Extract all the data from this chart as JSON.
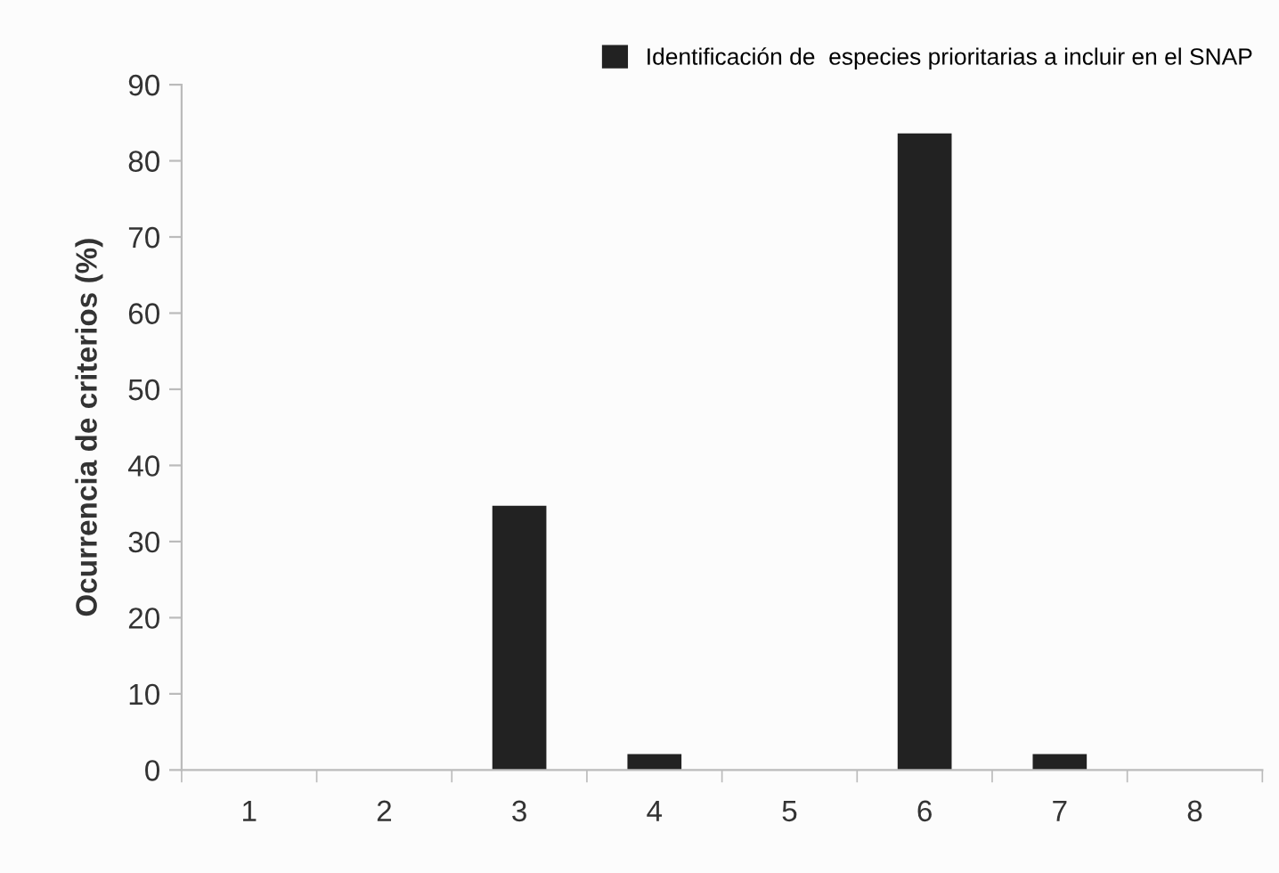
{
  "chart_data": {
    "type": "bar",
    "ylabel": "Ocurrencia de criterios (%)",
    "categories": [
      "1",
      "2",
      "3",
      "4",
      "5",
      "6",
      "7",
      "8"
    ],
    "series": [
      {
        "name": "Identificación de  especies prioritarias a incluir en el SNAP",
        "color": "#222222",
        "values": [
          0,
          0,
          34.7,
          2.1,
          0,
          83.6,
          2.1,
          0
        ]
      }
    ],
    "ylim": [
      0,
      90
    ],
    "yticks": [
      0,
      10,
      20,
      30,
      40,
      50,
      60,
      70,
      80,
      90
    ],
    "grid": false,
    "legend": "top right"
  }
}
